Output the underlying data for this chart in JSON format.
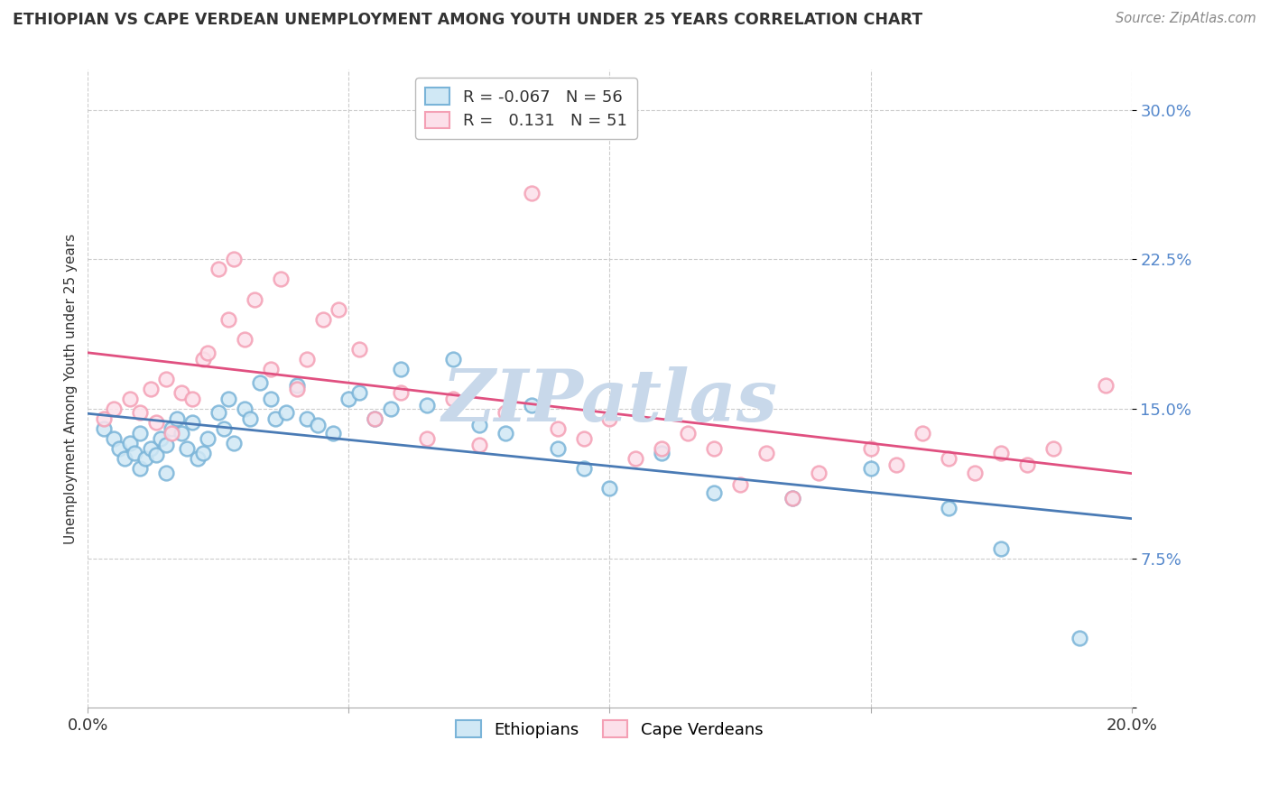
{
  "title": "ETHIOPIAN VS CAPE VERDEAN UNEMPLOYMENT AMONG YOUTH UNDER 25 YEARS CORRELATION CHART",
  "source_text": "Source: ZipAtlas.com",
  "ylabel": "Unemployment Among Youth under 25 years",
  "xlim": [
    0.0,
    0.2
  ],
  "ylim": [
    0.0,
    0.32
  ],
  "xticks": [
    0.0,
    0.05,
    0.1,
    0.15,
    0.2
  ],
  "yticks": [
    0.0,
    0.075,
    0.15,
    0.225,
    0.3
  ],
  "ethiopian_color": "#7ab4d8",
  "capeverdean_color": "#f4a0b5",
  "trendline_ethiopian_color": "#4a7bb5",
  "trendline_capeverdean_color": "#e05080",
  "watermark": "ZIPatlas",
  "watermark_color": "#c8d8ea",
  "background_color": "#ffffff",
  "grid_color": "#cccccc",
  "ytick_color": "#5588cc",
  "ethiopian_R": -0.067,
  "ethiopian_N": 56,
  "capeverdean_R": 0.131,
  "capeverdean_N": 51,
  "eth_x": [
    0.003,
    0.005,
    0.006,
    0.007,
    0.008,
    0.009,
    0.01,
    0.01,
    0.011,
    0.012,
    0.013,
    0.014,
    0.015,
    0.015,
    0.016,
    0.017,
    0.018,
    0.019,
    0.02,
    0.021,
    0.022,
    0.023,
    0.025,
    0.026,
    0.027,
    0.028,
    0.03,
    0.031,
    0.033,
    0.035,
    0.036,
    0.038,
    0.04,
    0.042,
    0.044,
    0.047,
    0.05,
    0.052,
    0.055,
    0.058,
    0.06,
    0.065,
    0.07,
    0.075,
    0.08,
    0.085,
    0.09,
    0.095,
    0.1,
    0.11,
    0.12,
    0.135,
    0.15,
    0.165,
    0.175,
    0.19
  ],
  "eth_y": [
    0.14,
    0.135,
    0.13,
    0.125,
    0.133,
    0.128,
    0.12,
    0.138,
    0.125,
    0.13,
    0.127,
    0.135,
    0.132,
    0.118,
    0.14,
    0.145,
    0.138,
    0.13,
    0.143,
    0.125,
    0.128,
    0.135,
    0.148,
    0.14,
    0.155,
    0.133,
    0.15,
    0.145,
    0.163,
    0.155,
    0.145,
    0.148,
    0.162,
    0.145,
    0.142,
    0.138,
    0.155,
    0.158,
    0.145,
    0.15,
    0.17,
    0.152,
    0.175,
    0.142,
    0.138,
    0.152,
    0.13,
    0.12,
    0.11,
    0.128,
    0.108,
    0.105,
    0.12,
    0.1,
    0.08,
    0.035
  ],
  "cv_x": [
    0.003,
    0.005,
    0.008,
    0.01,
    0.012,
    0.013,
    0.015,
    0.016,
    0.018,
    0.02,
    0.022,
    0.023,
    0.025,
    0.027,
    0.028,
    0.03,
    0.032,
    0.035,
    0.037,
    0.04,
    0.042,
    0.045,
    0.048,
    0.052,
    0.055,
    0.06,
    0.065,
    0.07,
    0.075,
    0.08,
    0.085,
    0.09,
    0.095,
    0.1,
    0.105,
    0.11,
    0.115,
    0.12,
    0.125,
    0.13,
    0.135,
    0.14,
    0.15,
    0.155,
    0.16,
    0.165,
    0.17,
    0.175,
    0.18,
    0.185,
    0.195
  ],
  "cv_y": [
    0.145,
    0.15,
    0.155,
    0.148,
    0.16,
    0.143,
    0.165,
    0.138,
    0.158,
    0.155,
    0.175,
    0.178,
    0.22,
    0.195,
    0.225,
    0.185,
    0.205,
    0.17,
    0.215,
    0.16,
    0.175,
    0.195,
    0.2,
    0.18,
    0.145,
    0.158,
    0.135,
    0.155,
    0.132,
    0.148,
    0.258,
    0.14,
    0.135,
    0.145,
    0.125,
    0.13,
    0.138,
    0.13,
    0.112,
    0.128,
    0.105,
    0.118,
    0.13,
    0.122,
    0.138,
    0.125,
    0.118,
    0.128,
    0.122,
    0.13,
    0.162
  ]
}
